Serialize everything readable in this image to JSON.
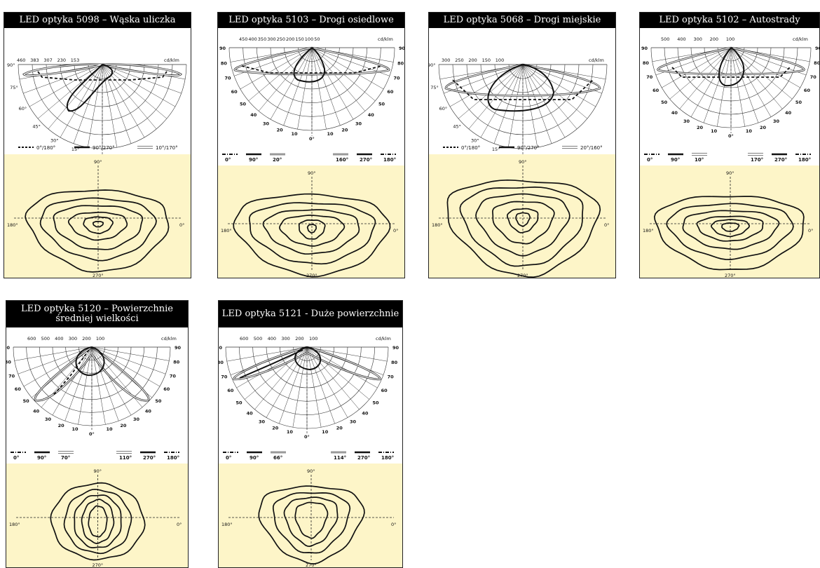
{
  "cards": [
    {
      "title": "LED optyka 5098 – Wąska uliczka",
      "unit": "cd/klm",
      "scale": [
        "460",
        "383",
        "307",
        "230",
        "153"
      ],
      "angles_left": [
        "90°",
        "75°",
        "60°",
        "45°",
        "30°",
        "15°"
      ],
      "angles_bottom": [
        "0°"
      ],
      "legend": [
        {
          "style": "dashed",
          "label": "0°/180°"
        },
        {
          "style": "thick",
          "label": "90°/270°"
        },
        {
          "style": "double",
          "label": "10°/170°"
        }
      ],
      "iso_labels": {
        "top": "90°",
        "left": "180°",
        "right": "0°",
        "bottom": "270°"
      }
    },
    {
      "title": "LED optyka 5103 – Drogi osiedlowe",
      "unit": "cd/klm",
      "scale": [
        "450",
        "400",
        "350",
        "300",
        "250",
        "200",
        "150",
        "100",
        "50"
      ],
      "angles_left": [
        "90",
        "80",
        "70",
        "60",
        "50",
        "40",
        "30",
        "20",
        "10"
      ],
      "angles_right": [
        "90",
        "80",
        "70",
        "60",
        "50",
        "40",
        "30",
        "20",
        "10"
      ],
      "angle_center": "0°",
      "legend": [
        {
          "style": "dashdot",
          "label": "0°"
        },
        {
          "style": "thick",
          "label": "90°"
        },
        {
          "style": "grey",
          "label": "20°"
        },
        {
          "style": "grey",
          "label": "160°"
        },
        {
          "style": "thick",
          "label": "270°"
        },
        {
          "style": "dashdot",
          "label": "180°"
        }
      ],
      "iso_labels": {
        "top": "90°",
        "left": "180°",
        "right": "0°",
        "bottom": "270°"
      }
    },
    {
      "title": "LED optyka 5068 – Drogi miejskie",
      "unit": "cd/klm",
      "scale": [
        "300",
        "250",
        "200",
        "150",
        "100"
      ],
      "angles_left": [
        "90°",
        "75°",
        "60°",
        "45°",
        "30°",
        "15°"
      ],
      "angles_bottom": [
        "0°"
      ],
      "legend": [
        {
          "style": "dashed",
          "label": "0°/180°"
        },
        {
          "style": "thick",
          "label": "90°/270°"
        },
        {
          "style": "double",
          "label": "20°/160°"
        }
      ],
      "iso_labels": {
        "top": "90°",
        "left": "180°",
        "right": "0°",
        "bottom": "270°"
      }
    },
    {
      "title": "LED optyka 5102 – Autostrady",
      "unit": "cd/klm",
      "scale": [
        "500",
        "400",
        "300",
        "200",
        "100"
      ],
      "angles_left": [
        "90",
        "80",
        "70",
        "60",
        "50",
        "40",
        "30",
        "20",
        "10"
      ],
      "angles_right": [
        "90",
        "80",
        "70",
        "60",
        "50",
        "40",
        "30",
        "20",
        "10"
      ],
      "angle_center": "0°",
      "legend": [
        {
          "style": "dashdot",
          "label": "0°"
        },
        {
          "style": "thick",
          "label": "90°"
        },
        {
          "style": "double",
          "label": "10°"
        },
        {
          "style": "double",
          "label": "170°"
        },
        {
          "style": "thick",
          "label": "270°"
        },
        {
          "style": "dashdot",
          "label": "180°"
        }
      ],
      "iso_labels": {
        "top": "90°",
        "left": "180°",
        "right": "0°",
        "bottom": "270°"
      }
    },
    {
      "title": "LED optyka 5120 – Powierzchnie średniej wielkości",
      "unit": "cd/klm",
      "scale": [
        "600",
        "500",
        "400",
        "300",
        "200",
        "100"
      ],
      "angles_left": [
        "90",
        "80",
        "70",
        "60",
        "50",
        "40",
        "30",
        "20",
        "10"
      ],
      "angles_right": [
        "90",
        "80",
        "70",
        "60",
        "50",
        "40",
        "30",
        "20",
        "10"
      ],
      "angle_center": "0°",
      "legend": [
        {
          "style": "dashdot",
          "label": "0°"
        },
        {
          "style": "thick",
          "label": "90°"
        },
        {
          "style": "double",
          "label": "70°"
        },
        {
          "style": "double",
          "label": "110°"
        },
        {
          "style": "thick",
          "label": "270°"
        },
        {
          "style": "dashdot",
          "label": "180°"
        }
      ],
      "iso_labels": {
        "top": "90°",
        "left": "180°",
        "right": "0°",
        "bottom": "270°"
      }
    },
    {
      "title": "LED optyka 5121 - Duże powierzchnie",
      "unit": "cd/klm",
      "scale": [
        "600",
        "500",
        "400",
        "300",
        "200",
        "100"
      ],
      "angles_left": [
        "90",
        "80",
        "70",
        "60",
        "50",
        "40",
        "30",
        "20",
        "10"
      ],
      "angles_right": [
        "90",
        "80",
        "70",
        "60",
        "50",
        "40",
        "30",
        "20",
        "10"
      ],
      "angle_center": "0°",
      "legend": [
        {
          "style": "dashdot",
          "label": "0°"
        },
        {
          "style": "thick",
          "label": "90°"
        },
        {
          "style": "grey",
          "label": "66°"
        },
        {
          "style": "grey",
          "label": "114°"
        },
        {
          "style": "thick",
          "label": "270°"
        },
        {
          "style": "dashdot",
          "label": "180°"
        }
      ],
      "iso_labels": {
        "top": "90°",
        "left": "180°",
        "right": "0°",
        "bottom": "270°"
      }
    }
  ],
  "colors": {
    "iso_background": "#fdf5c8",
    "title_background": "#000000",
    "title_text": "#ffffff"
  }
}
